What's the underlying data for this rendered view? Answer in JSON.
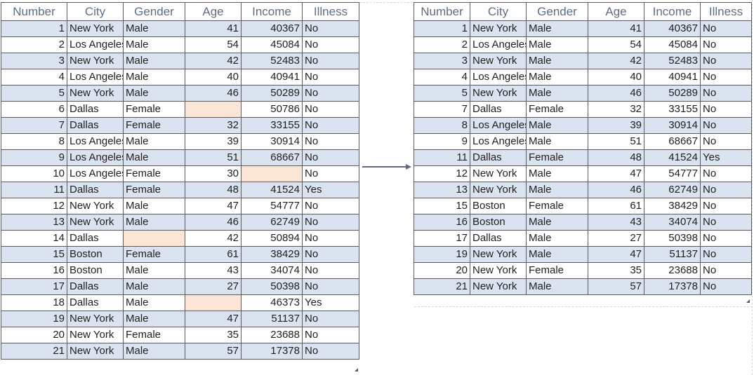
{
  "headers": [
    "Number",
    "City",
    "Gender",
    "Age",
    "Income",
    "Illness"
  ],
  "colors": {
    "band": "#dbe3f0",
    "missing_cell": "#fbe5d6",
    "header_text": "#5a6f86",
    "arrow": "#5f6b7a"
  },
  "arrow_icon": "right-arrow-icon",
  "left_table": [
    {
      "number": "1",
      "city": "New York",
      "gender": "Male",
      "age": "41",
      "income": "40367",
      "illness": "No"
    },
    {
      "number": "2",
      "city": "Los Angeles",
      "gender": "Male",
      "age": "54",
      "income": "45084",
      "illness": "No"
    },
    {
      "number": "3",
      "city": "New York",
      "gender": "Male",
      "age": "42",
      "income": "52483",
      "illness": "No"
    },
    {
      "number": "4",
      "city": "Los Angeles",
      "gender": "Male",
      "age": "40",
      "income": "40941",
      "illness": "No"
    },
    {
      "number": "5",
      "city": "New York",
      "gender": "Male",
      "age": "46",
      "income": "50289",
      "illness": "No"
    },
    {
      "number": "6",
      "city": "Dallas",
      "gender": "Female",
      "age": "",
      "income": "50786",
      "illness": "No"
    },
    {
      "number": "7",
      "city": "Dallas",
      "gender": "Female",
      "age": "32",
      "income": "33155",
      "illness": "No"
    },
    {
      "number": "8",
      "city": "Los Angeles",
      "gender": "Male",
      "age": "39",
      "income": "30914",
      "illness": "No"
    },
    {
      "number": "9",
      "city": "Los Angeles",
      "gender": "Male",
      "age": "51",
      "income": "68667",
      "illness": "No"
    },
    {
      "number": "10",
      "city": "Los Angeles",
      "gender": "Female",
      "age": "30",
      "income": "",
      "illness": "No"
    },
    {
      "number": "11",
      "city": "Dallas",
      "gender": "Female",
      "age": "48",
      "income": "41524",
      "illness": "Yes"
    },
    {
      "number": "12",
      "city": "New York",
      "gender": "Male",
      "age": "47",
      "income": "54777",
      "illness": "No"
    },
    {
      "number": "13",
      "city": "New York",
      "gender": "Male",
      "age": "46",
      "income": "62749",
      "illness": "No"
    },
    {
      "number": "14",
      "city": "Dallas",
      "gender": "",
      "age": "42",
      "income": "50894",
      "illness": "No"
    },
    {
      "number": "15",
      "city": "Boston",
      "gender": "Female",
      "age": "61",
      "income": "38429",
      "illness": "No"
    },
    {
      "number": "16",
      "city": "Boston",
      "gender": "Male",
      "age": "43",
      "income": "34074",
      "illness": "No"
    },
    {
      "number": "17",
      "city": "Dallas",
      "gender": "Male",
      "age": "27",
      "income": "50398",
      "illness": "No"
    },
    {
      "number": "18",
      "city": "Dallas",
      "gender": "Male",
      "age": "",
      "income": "46373",
      "illness": "Yes"
    },
    {
      "number": "19",
      "city": "New York",
      "gender": "Male",
      "age": "47",
      "income": "51137",
      "illness": "No"
    },
    {
      "number": "20",
      "city": "New York",
      "gender": "Female",
      "age": "35",
      "income": "23688",
      "illness": "No"
    },
    {
      "number": "21",
      "city": "New York",
      "gender": "Male",
      "age": "57",
      "income": "17378",
      "illness": "No"
    }
  ],
  "right_table": [
    {
      "number": "1",
      "city": "New York",
      "gender": "Male",
      "age": "41",
      "income": "40367",
      "illness": "No"
    },
    {
      "number": "2",
      "city": "Los Angeles",
      "gender": "Male",
      "age": "54",
      "income": "45084",
      "illness": "No"
    },
    {
      "number": "3",
      "city": "New York",
      "gender": "Male",
      "age": "42",
      "income": "52483",
      "illness": "No"
    },
    {
      "number": "4",
      "city": "Los Angeles",
      "gender": "Male",
      "age": "40",
      "income": "40941",
      "illness": "No"
    },
    {
      "number": "5",
      "city": "New York",
      "gender": "Male",
      "age": "46",
      "income": "50289",
      "illness": "No"
    },
    {
      "number": "7",
      "city": "Dallas",
      "gender": "Female",
      "age": "32",
      "income": "33155",
      "illness": "No"
    },
    {
      "number": "8",
      "city": "Los Angeles",
      "gender": "Male",
      "age": "39",
      "income": "30914",
      "illness": "No"
    },
    {
      "number": "9",
      "city": "Los Angeles",
      "gender": "Male",
      "age": "51",
      "income": "68667",
      "illness": "No"
    },
    {
      "number": "11",
      "city": "Dallas",
      "gender": "Female",
      "age": "48",
      "income": "41524",
      "illness": "Yes"
    },
    {
      "number": "12",
      "city": "New York",
      "gender": "Male",
      "age": "47",
      "income": "54777",
      "illness": "No"
    },
    {
      "number": "13",
      "city": "New York",
      "gender": "Male",
      "age": "46",
      "income": "62749",
      "illness": "No"
    },
    {
      "number": "15",
      "city": "Boston",
      "gender": "Female",
      "age": "61",
      "income": "38429",
      "illness": "No"
    },
    {
      "number": "16",
      "city": "Boston",
      "gender": "Male",
      "age": "43",
      "income": "34074",
      "illness": "No"
    },
    {
      "number": "17",
      "city": "Dallas",
      "gender": "Male",
      "age": "27",
      "income": "50398",
      "illness": "No"
    },
    {
      "number": "19",
      "city": "New York",
      "gender": "Male",
      "age": "47",
      "income": "51137",
      "illness": "No"
    },
    {
      "number": "20",
      "city": "New York",
      "gender": "Female",
      "age": "35",
      "income": "23688",
      "illness": "No"
    },
    {
      "number": "21",
      "city": "New York",
      "gender": "Male",
      "age": "57",
      "income": "17378",
      "illness": "No"
    }
  ]
}
